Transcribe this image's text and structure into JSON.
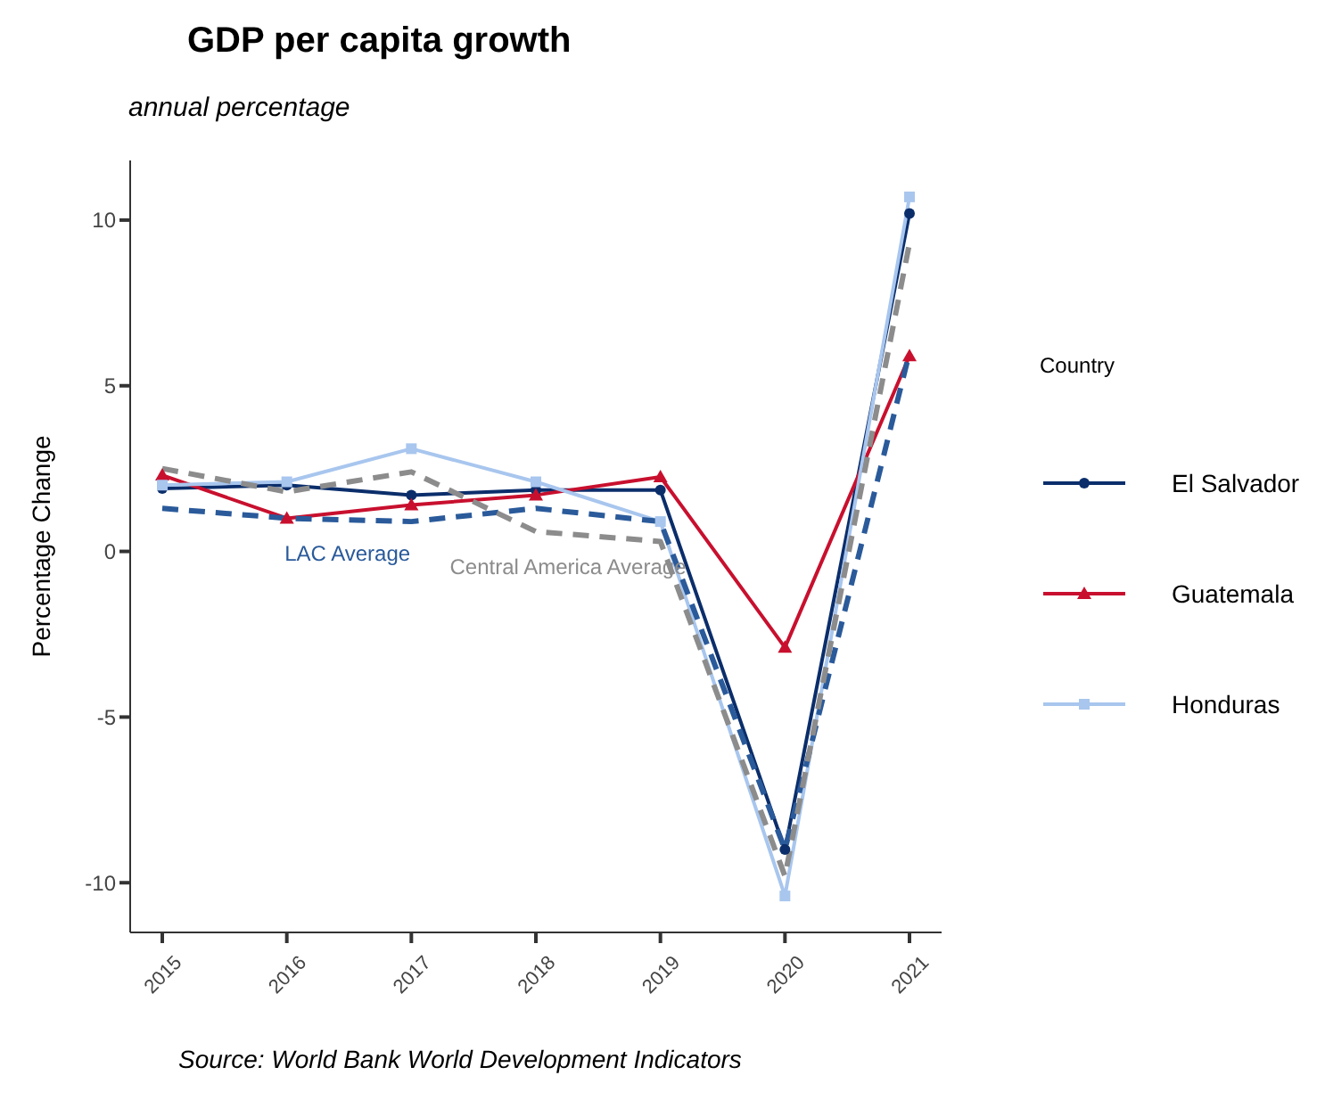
{
  "chart_data": {
    "type": "line",
    "title": "GDP per capita growth",
    "subtitle": "annual percentage",
    "ylabel": "Percentage Change",
    "legend_title": "Country",
    "categories": [
      "2015",
      "2016",
      "2017",
      "2018",
      "2019",
      "2020",
      "2021"
    ],
    "series": [
      {
        "name": "El Salvador",
        "color": "#0b2e6b",
        "marker": "circle",
        "line_style": "solid",
        "values": [
          1.9,
          2.0,
          1.7,
          1.85,
          1.85,
          -9.0,
          10.2
        ]
      },
      {
        "name": "Guatemala",
        "color": "#c8102e",
        "marker": "triangle",
        "line_style": "solid",
        "values": [
          2.3,
          1.0,
          1.4,
          1.7,
          2.25,
          -2.9,
          5.9
        ]
      },
      {
        "name": "Honduras",
        "color": "#a8c6ee",
        "marker": "square",
        "line_style": "solid",
        "values": [
          2.0,
          2.1,
          3.1,
          2.1,
          0.9,
          -10.4,
          10.7
        ]
      },
      {
        "name": "LAC Average",
        "color": "#2a5a9a",
        "marker": "none",
        "line_style": "dashed",
        "values": [
          1.3,
          1.0,
          0.9,
          1.3,
          0.9,
          -9.0,
          6.0
        ]
      },
      {
        "name": "Central America Average",
        "color": "#8c8c8c",
        "marker": "none",
        "line_style": "dashed",
        "values": [
          2.5,
          1.8,
          2.4,
          0.6,
          0.3,
          -9.8,
          9.3
        ]
      }
    ],
    "ylim": [
      -11.5,
      11.8
    ],
    "yticks": [
      -10,
      -5,
      0,
      5,
      10
    ],
    "grid": false,
    "legend": "right",
    "annotations": [
      "Source: World Bank World Development Indicators"
    ]
  }
}
